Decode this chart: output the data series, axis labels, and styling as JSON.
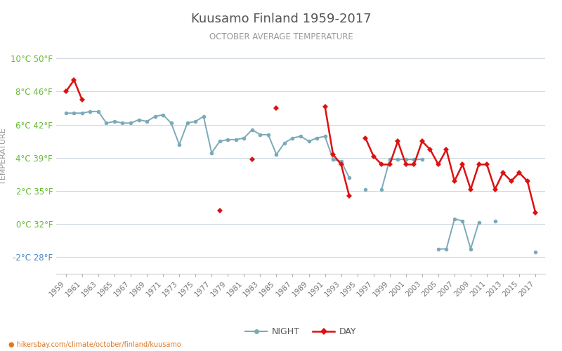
{
  "title": "Kuusamo Finland 1959-2017",
  "subtitle": "OCTOBER AVERAGE TEMPERATURE",
  "ylabel": "TEMPERATURE",
  "url_text": "hikersbay.com/climate/october/finland/kuusamo",
  "night_color": "#7aaab8",
  "day_color": "#dd1111",
  "bg_color": "#ffffff",
  "grid_color": "#d0d8e0",
  "title_color": "#555555",
  "subtitle_color": "#999999",
  "ylabel_color": "#999999",
  "xtick_color": "#777777",
  "green_tick": "#66bb33",
  "blue_tick": "#4488cc",
  "orange_url": "#e07722",
  "years": [
    1959,
    1960,
    1961,
    1962,
    1963,
    1964,
    1965,
    1966,
    1967,
    1968,
    1969,
    1970,
    1971,
    1972,
    1973,
    1974,
    1975,
    1976,
    1977,
    1978,
    1979,
    1980,
    1981,
    1982,
    1983,
    1984,
    1985,
    1986,
    1987,
    1988,
    1989,
    1990,
    1991,
    1992,
    1993,
    1994,
    1995,
    1996,
    1997,
    1998,
    1999,
    2000,
    2001,
    2002,
    2003,
    2004,
    2005,
    2006,
    2007,
    2008,
    2009,
    2010,
    2011,
    2012,
    2013,
    2014,
    2015,
    2016,
    2017
  ],
  "night_vals": [
    6.7,
    6.7,
    6.7,
    6.8,
    6.8,
    6.1,
    6.2,
    6.1,
    6.1,
    6.3,
    6.2,
    6.5,
    6.6,
    6.1,
    4.8,
    6.1,
    6.2,
    6.5,
    4.3,
    5.0,
    5.1,
    5.1,
    5.2,
    5.7,
    5.4,
    5.4,
    4.2,
    4.9,
    5.2,
    5.3,
    5.0,
    5.2,
    5.3,
    3.9,
    3.8,
    2.8,
    null,
    2.1,
    null,
    2.1,
    3.9,
    3.9,
    3.9,
    3.9,
    3.9,
    null,
    -1.5,
    -1.5,
    0.3,
    0.2,
    -1.5,
    0.1,
    null,
    0.2,
    null,
    null,
    null,
    null,
    -1.7
  ],
  "day_vals": [
    8.0,
    8.7,
    7.5,
    null,
    null,
    null,
    null,
    null,
    null,
    null,
    null,
    null,
    null,
    null,
    null,
    null,
    null,
    null,
    null,
    null,
    null,
    null,
    null,
    null,
    null,
    null,
    null,
    null,
    null,
    null,
    null,
    null,
    7.1,
    4.2,
    3.6,
    1.7,
    null,
    null,
    null,
    null,
    null,
    null,
    null,
    null,
    null,
    null,
    null,
    null,
    null,
    null,
    null,
    null,
    null,
    null,
    null,
    null,
    null,
    null,
    null
  ],
  "day_vals2_years": [
    1978,
    1982,
    1985,
    1991,
    1992,
    1993,
    1994,
    1996,
    1997,
    1998,
    1999,
    2000,
    2001,
    2002,
    2003,
    2004,
    2005,
    2006,
    2007,
    2008,
    2009,
    2010,
    2011,
    2012,
    2013,
    2014,
    2015,
    2016,
    2017
  ],
  "day_vals2": [
    0.8,
    3.9,
    7.0,
    7.1,
    4.2,
    3.6,
    1.7,
    5.2,
    4.1,
    3.6,
    3.6,
    5.0,
    3.6,
    3.6,
    5.0,
    4.5,
    3.6,
    4.5,
    2.6,
    3.6,
    2.1,
    3.6,
    3.6,
    2.1,
    3.1,
    2.6,
    3.1,
    2.6,
    0.7
  ],
  "celsius_ticks": [
    -2,
    0,
    2,
    4,
    6,
    8,
    10
  ],
  "fahrenheit_ticks": [
    28,
    32,
    35,
    39,
    42,
    46,
    50
  ],
  "ylim_min": -3.0,
  "ylim_max": 11.2,
  "xlim_min": 1957.8,
  "xlim_max": 2018.2
}
